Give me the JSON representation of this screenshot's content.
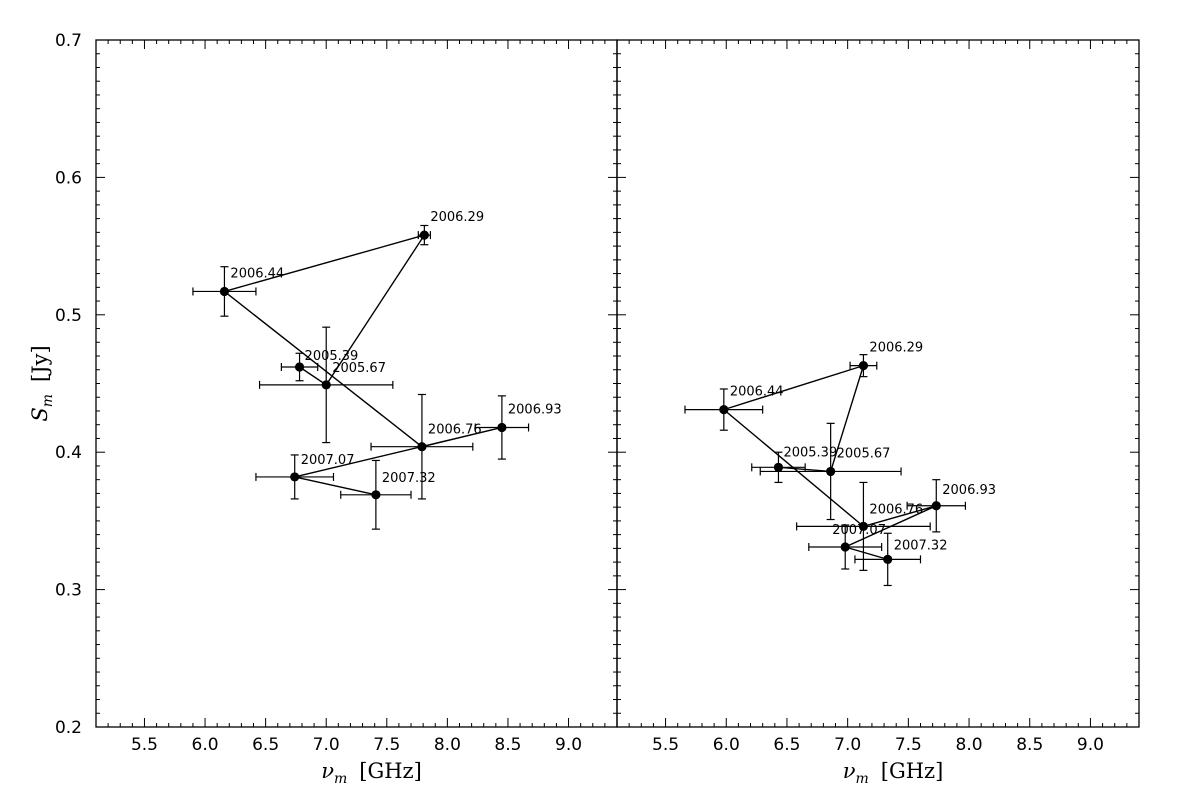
{
  "chart_data": [
    {
      "type": "scatter",
      "panel": "left",
      "xlabel": "ν_m [GHz]",
      "xlabel_symbol": "ν",
      "xlabel_sub": "m",
      "xlabel_unit": "[GHz]",
      "ylabel": "S_m [Jy]",
      "ylabel_symbol": "S",
      "ylabel_sub": "m",
      "ylabel_unit": "[Jy]",
      "xlim": [
        5.1,
        9.4
      ],
      "ylim": [
        0.2,
        0.7
      ],
      "xticks": [
        "5.5",
        "6.0",
        "6.5",
        "7.0",
        "7.5",
        "8.0",
        "8.5",
        "9.0"
      ],
      "yticks": [
        "0.2",
        "0.3",
        "0.4",
        "0.5",
        "0.6",
        "0.7"
      ],
      "connected": true,
      "points": [
        {
          "label": "2005.39",
          "x": 6.78,
          "y": 0.462,
          "xerr": 0.15,
          "yerr": 0.01
        },
        {
          "label": "2005.67",
          "x": 7.0,
          "y": 0.449,
          "xerr": 0.55,
          "yerr": 0.042
        },
        {
          "label": "2006.29",
          "x": 7.81,
          "y": 0.558,
          "xerr": 0.05,
          "yerr": 0.007
        },
        {
          "label": "2006.44",
          "x": 6.16,
          "y": 0.517,
          "xerr": 0.26,
          "yerr": 0.018
        },
        {
          "label": "2006.76",
          "x": 7.79,
          "y": 0.404,
          "xerr": 0.42,
          "yerr": 0.038
        },
        {
          "label": "2006.93",
          "x": 8.45,
          "y": 0.418,
          "xerr": 0.22,
          "yerr": 0.023
        },
        {
          "label": "2007.07",
          "x": 6.74,
          "y": 0.382,
          "xerr": 0.32,
          "yerr": 0.016
        },
        {
          "label": "2007.32",
          "x": 7.41,
          "y": 0.369,
          "xerr": 0.29,
          "yerr": 0.025
        }
      ]
    },
    {
      "type": "scatter",
      "panel": "right",
      "xlabel": "ν_m [GHz]",
      "xlabel_symbol": "ν",
      "xlabel_sub": "m",
      "xlabel_unit": "[GHz]",
      "xlim": [
        5.1,
        9.4
      ],
      "ylim": [
        0.2,
        0.7
      ],
      "xticks": [
        "5.5",
        "6.0",
        "6.5",
        "7.0",
        "7.5",
        "8.0",
        "8.5",
        "9.0"
      ],
      "connected": true,
      "points": [
        {
          "label": "2005.39",
          "x": 6.43,
          "y": 0.389,
          "xerr": 0.22,
          "yerr": 0.011
        },
        {
          "label": "2005.67",
          "x": 6.86,
          "y": 0.386,
          "xerr": 0.58,
          "yerr": 0.035
        },
        {
          "label": "2006.29",
          "x": 7.13,
          "y": 0.463,
          "xerr": 0.11,
          "yerr": 0.008
        },
        {
          "label": "2006.44",
          "x": 5.98,
          "y": 0.431,
          "xerr": 0.32,
          "yerr": 0.015
        },
        {
          "label": "2006.76",
          "x": 7.13,
          "y": 0.346,
          "xerr": 0.55,
          "yerr": 0.032
        },
        {
          "label": "2006.93",
          "x": 7.73,
          "y": 0.361,
          "xerr": 0.24,
          "yerr": 0.019
        },
        {
          "label": "2007.07",
          "x": 6.98,
          "y": 0.331,
          "xerr": 0.3,
          "yerr": 0.016
        },
        {
          "label": "2007.32",
          "x": 7.33,
          "y": 0.322,
          "xerr": 0.27,
          "yerr": 0.019
        }
      ]
    }
  ]
}
